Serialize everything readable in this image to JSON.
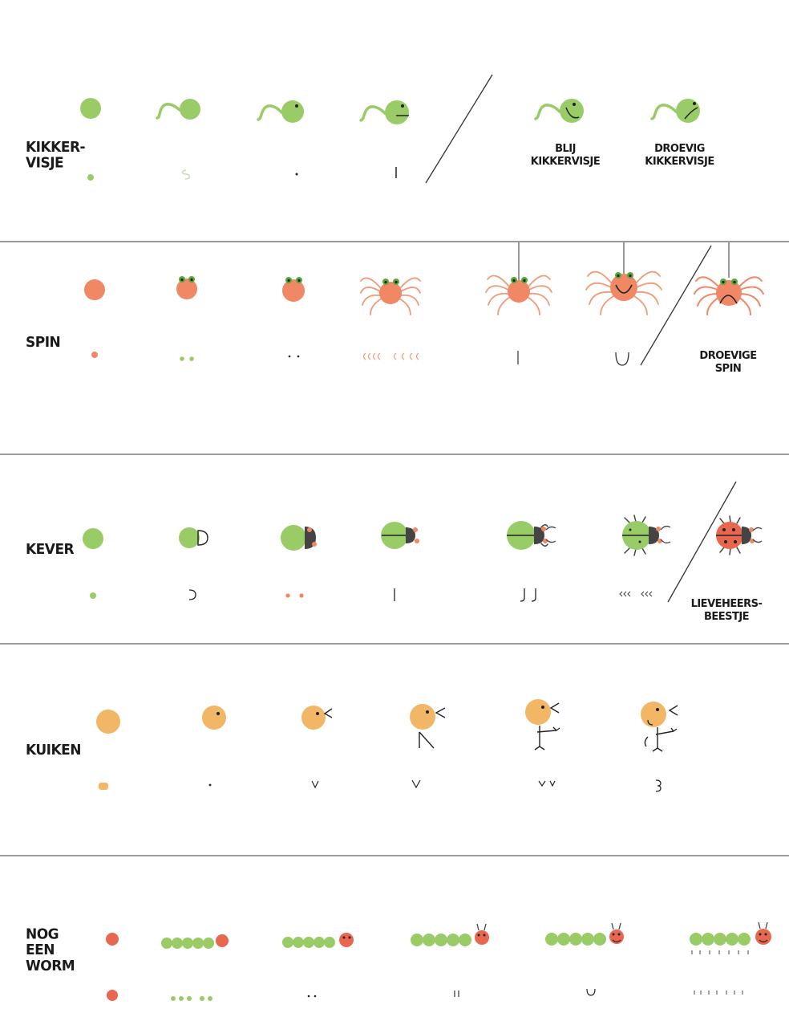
{
  "colors": {
    "green": "#99cc66",
    "orange": "#f08866",
    "spider_leg": "#f19a78",
    "red": "#e8674e",
    "chick": "#f2b766",
    "ink": "#222222",
    "divider": "#9a9a9a"
  },
  "rows": [
    {
      "label_lines": [
        "KIKKER-",
        "VISJE"
      ],
      "captions": [
        {
          "lines": [
            "BLIJ",
            "KIKKERVISJE"
          ]
        },
        {
          "lines": [
            "DROEVIG",
            "KIKKERVISJE"
          ]
        }
      ]
    },
    {
      "label_lines": [
        "SPIN"
      ],
      "captions": [
        {
          "lines": [
            "DROEVIGE",
            "SPIN"
          ]
        }
      ]
    },
    {
      "label_lines": [
        "KEVER"
      ],
      "captions": [
        {
          "lines": [
            "LIEVEHEERS-",
            "BEESTJE"
          ]
        }
      ]
    },
    {
      "label_lines": [
        "KUIKEN"
      ],
      "captions": []
    },
    {
      "label_lines": [
        "NOG",
        "EEN",
        "WORM"
      ],
      "captions": []
    }
  ]
}
